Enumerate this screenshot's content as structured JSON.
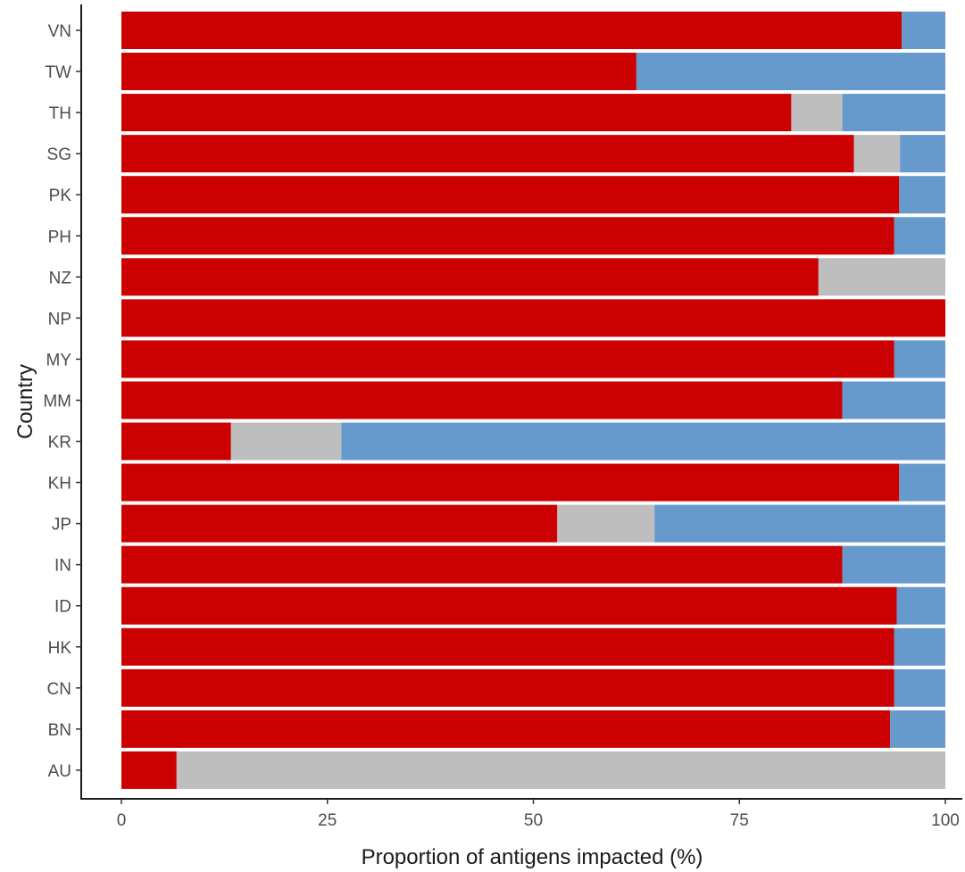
{
  "chart_data": {
    "type": "bar",
    "orientation": "horizontal",
    "stacked": true,
    "xlabel": "Proportion of antigens impacted (%)",
    "ylabel": "Country",
    "xlim": [
      0,
      100
    ],
    "x_ticks": [
      0,
      25,
      50,
      75,
      100
    ],
    "x_tick_labels": [
      "0",
      "25",
      "50",
      "75",
      "100"
    ],
    "grid": false,
    "legend": "none",
    "categories": [
      "VN",
      "TW",
      "TH",
      "SG",
      "PK",
      "PH",
      "NZ",
      "NP",
      "MY",
      "MM",
      "KR",
      "KH",
      "JP",
      "IN",
      "ID",
      "HK",
      "CN",
      "BN",
      "AU"
    ],
    "series": [
      {
        "color": "#cc0000",
        "values": [
          94.7,
          62.5,
          81.3,
          88.9,
          94.4,
          93.8,
          84.6,
          100,
          93.8,
          87.5,
          13.3,
          94.4,
          52.9,
          87.5,
          94.1,
          93.8,
          93.8,
          93.3,
          6.7
        ]
      },
      {
        "color": "#bebebe",
        "values": [
          0,
          0,
          6.2,
          5.6,
          0,
          0,
          15.4,
          0,
          0,
          0,
          13.4,
          0,
          11.8,
          0,
          0,
          0,
          0,
          0,
          93.3
        ]
      },
      {
        "color": "#6699cc",
        "values": [
          5.3,
          37.5,
          12.5,
          5.5,
          5.6,
          6.2,
          0,
          0,
          6.2,
          12.5,
          73.3,
          5.6,
          35.3,
          12.5,
          5.9,
          6.2,
          6.2,
          6.7,
          0
        ]
      }
    ]
  }
}
